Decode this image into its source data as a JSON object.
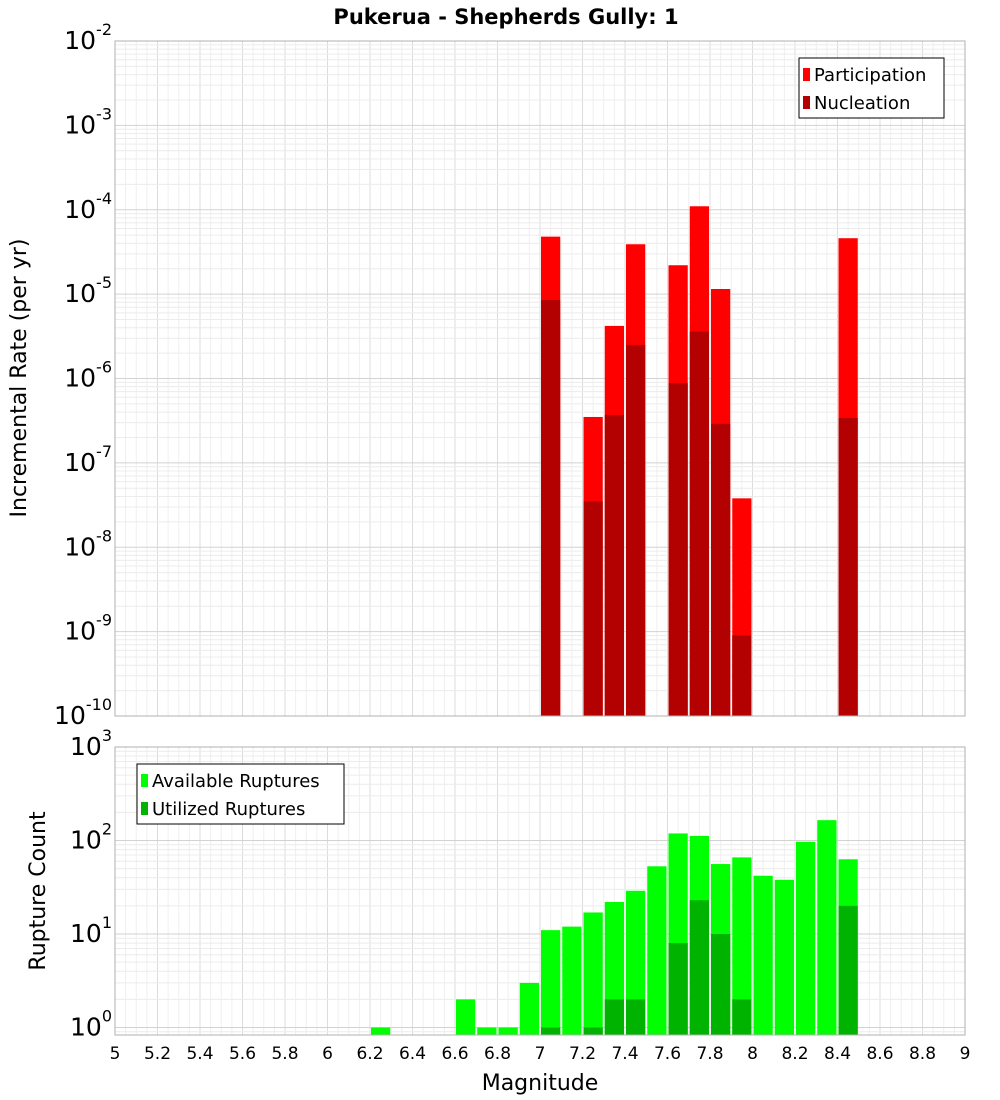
{
  "chart_data": {
    "title": "Pukerua - Shepherds Gully: 1",
    "xlabel": "Magnitude",
    "xlim": [
      5,
      9
    ],
    "x_ticks": [
      "5",
      "5.2",
      "5.4",
      "5.6",
      "5.8",
      "6",
      "6.2",
      "6.4",
      "6.6",
      "6.8",
      "7",
      "7.2",
      "7.4",
      "7.6",
      "7.8",
      "8",
      "8.2",
      "8.4",
      "8.6",
      "8.8",
      "9"
    ],
    "bin_width": 0.1,
    "panels": [
      {
        "type": "bar",
        "ylabel": "Incremental Rate (per yr)",
        "yscale": "log",
        "ylim_exp": [
          -10,
          -2
        ],
        "y_tick_labels": [
          {
            "base": "10",
            "exp": "-2"
          },
          {
            "base": "10",
            "exp": "-3"
          },
          {
            "base": "10",
            "exp": "-4"
          },
          {
            "base": "10",
            "exp": "-5"
          },
          {
            "base": "10",
            "exp": "-6"
          },
          {
            "base": "10",
            "exp": "-7"
          },
          {
            "base": "10",
            "exp": "-8"
          },
          {
            "base": "10",
            "exp": "-9"
          },
          {
            "base": "10",
            "exp": "-10"
          }
        ],
        "grid": true,
        "legend_position": "top-right",
        "series": [
          {
            "name": "Participation",
            "color": "#ff0000",
            "x": [
              7.05,
              7.25,
              7.35,
              7.45,
              7.65,
              7.75,
              7.85,
              7.95,
              8.45
            ],
            "values": [
              4.8e-05,
              3.5e-07,
              4.2e-06,
              3.9e-05,
              2.2e-05,
              0.00011,
              1.15e-05,
              3.8e-08,
              4.6e-05
            ]
          },
          {
            "name": "Nucleation",
            "color": "#b30000",
            "x": [
              7.05,
              7.25,
              7.35,
              7.45,
              7.65,
              7.75,
              7.85,
              7.95,
              8.45
            ],
            "values": [
              8.5e-06,
              3.5e-08,
              3.7e-07,
              2.5e-06,
              8.8e-07,
              3.6e-06,
              2.9e-07,
              9e-10,
              3.4e-07
            ]
          }
        ]
      },
      {
        "type": "bar",
        "ylabel": "Rupture Count",
        "yscale": "log",
        "ylim_exp": [
          -0.08,
          3
        ],
        "y_tick_labels": [
          {
            "base": "10",
            "exp": "3"
          },
          {
            "base": "10",
            "exp": "2"
          },
          {
            "base": "10",
            "exp": "1"
          },
          {
            "base": "10",
            "exp": "0"
          }
        ],
        "grid": true,
        "legend_position": "top-left",
        "series": [
          {
            "name": "Available Ruptures",
            "color": "#00ff00",
            "x": [
              6.25,
              6.65,
              6.75,
              6.85,
              6.95,
              7.05,
              7.15,
              7.25,
              7.35,
              7.45,
              7.55,
              7.65,
              7.75,
              7.85,
              7.95,
              8.05,
              8.15,
              8.25,
              8.35,
              8.45
            ],
            "values": [
              1,
              2,
              1,
              1,
              3,
              11,
              12,
              17,
              22,
              29,
              53,
              119,
              112,
              56,
              66,
              42,
              38,
              97,
              165,
              63
            ]
          },
          {
            "name": "Utilized Ruptures",
            "color": "#00b300",
            "x": [
              7.05,
              7.25,
              7.35,
              7.45,
              7.65,
              7.75,
              7.85,
              7.95,
              8.45
            ],
            "values": [
              1,
              1,
              2,
              2,
              8,
              23,
              10,
              2,
              20
            ]
          }
        ]
      }
    ]
  }
}
